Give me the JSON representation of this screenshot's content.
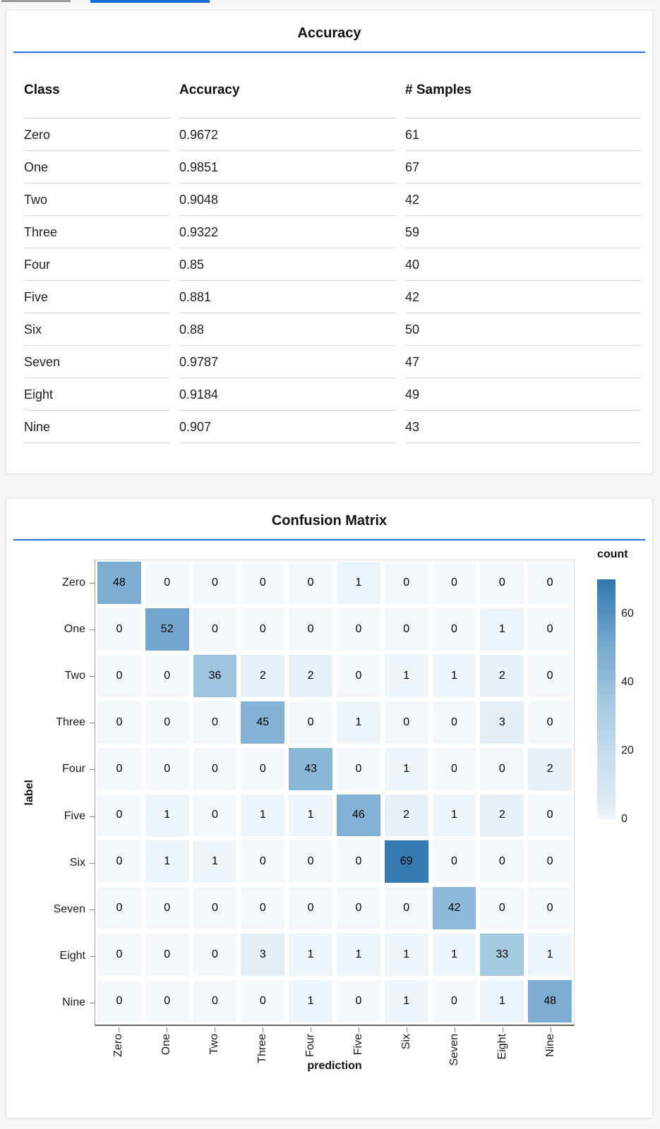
{
  "accuracy_panel": {
    "title": "Accuracy",
    "columns": [
      "Class",
      "Accuracy",
      "# Samples"
    ],
    "rows": [
      {
        "class": "Zero",
        "accuracy": "0.9672",
        "samples": "61"
      },
      {
        "class": "One",
        "accuracy": "0.9851",
        "samples": "67"
      },
      {
        "class": "Two",
        "accuracy": "0.9048",
        "samples": "42"
      },
      {
        "class": "Three",
        "accuracy": "0.9322",
        "samples": "59"
      },
      {
        "class": "Four",
        "accuracy": "0.85",
        "samples": "40"
      },
      {
        "class": "Five",
        "accuracy": "0.881",
        "samples": "42"
      },
      {
        "class": "Six",
        "accuracy": "0.88",
        "samples": "50"
      },
      {
        "class": "Seven",
        "accuracy": "0.9787",
        "samples": "47"
      },
      {
        "class": "Eight",
        "accuracy": "0.9184",
        "samples": "49"
      },
      {
        "class": "Nine",
        "accuracy": "0.907",
        "samples": "43"
      }
    ]
  },
  "confusion_panel": {
    "title": "Confusion Matrix"
  },
  "chart_data": {
    "type": "heatmap",
    "title": "Confusion Matrix",
    "xlabel": "prediction",
    "ylabel": "label",
    "categories": [
      "Zero",
      "One",
      "Two",
      "Three",
      "Four",
      "Five",
      "Six",
      "Seven",
      "Eight",
      "Nine"
    ],
    "matrix": [
      [
        48,
        0,
        0,
        0,
        0,
        1,
        0,
        0,
        0,
        0
      ],
      [
        0,
        52,
        0,
        0,
        0,
        0,
        0,
        0,
        1,
        0
      ],
      [
        0,
        0,
        36,
        2,
        2,
        0,
        1,
        1,
        2,
        0
      ],
      [
        0,
        0,
        0,
        45,
        0,
        1,
        0,
        0,
        3,
        0
      ],
      [
        0,
        0,
        0,
        0,
        43,
        0,
        1,
        0,
        0,
        2
      ],
      [
        0,
        1,
        0,
        1,
        1,
        46,
        2,
        1,
        2,
        0
      ],
      [
        0,
        1,
        1,
        0,
        0,
        0,
        69,
        0,
        0,
        0
      ],
      [
        0,
        0,
        0,
        0,
        0,
        0,
        0,
        42,
        0,
        0
      ],
      [
        0,
        0,
        0,
        3,
        1,
        1,
        1,
        1,
        33,
        1
      ],
      [
        0,
        0,
        0,
        0,
        1,
        0,
        1,
        0,
        1,
        48
      ]
    ],
    "legend": {
      "title": "count",
      "ticks": [
        0,
        20,
        40,
        60
      ],
      "domain": [
        0,
        70
      ],
      "position": "right"
    },
    "grid": false,
    "colors": {
      "accent_rule": "#2374e8",
      "scheme_name": "blues",
      "scheme_stops": [
        [
          0,
          "#f4f8fc"
        ],
        [
          4,
          "#ddeaf4"
        ],
        [
          20,
          "#c3ddee"
        ],
        [
          36,
          "#9fc4df"
        ],
        [
          48,
          "#7dadd2"
        ],
        [
          52,
          "#72a6cd"
        ],
        [
          69,
          "#3579b1"
        ],
        [
          70,
          "#3377af"
        ]
      ]
    }
  }
}
